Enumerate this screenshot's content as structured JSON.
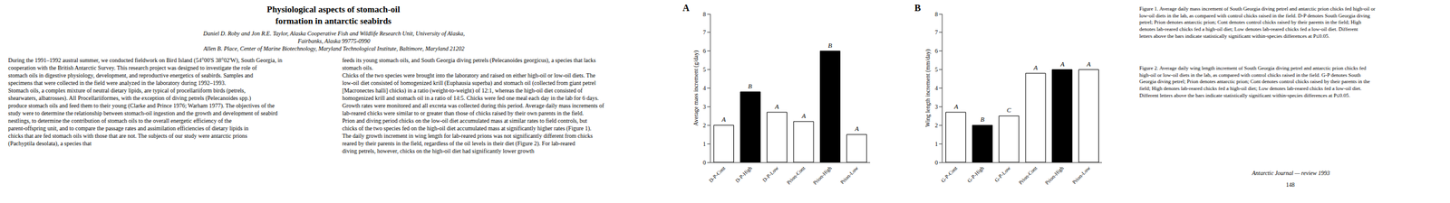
{
  "title": "Physiological aspects of stomach-oil\nformation in antarctic seabirds",
  "subtitle": [
    "Daniel D. Roby and Jon R.E. Taylor, Alaska Cooperative Fish and Wildlife Research Unit, University of Alaska,",
    "Fairbanks, Alaska 99775-0990",
    "Allen B. Place, Center of Marine Biotechnology, Maryland Technological Institute, Baltimore, Maryland 21202"
  ],
  "annotations": [
    "During the 1991–1992 austral summer, we conducted fieldwork on Bird Island (54°00'S 38°02'W), South Georgia, in cooperation with the British Antarctic Survey. This research project was designed to investigate the role of stomach oils in digestive physiology, development, and reproductive energetics of seabirds. Samples and specimens that were collected in the field were analyzed in the laboratory during 1992–1993.\nStomach oils, a complex mixture of neutral dietary lipids, are typical of procellariiform birds (petrels, shearwaters, albatrosses). All Procellariiformes, with the exception of diving petrels (Pelecanoides spp.) produce stomach oils and feed them to their young (Clarke and Prince 1976; Warham 1977). The objectives of the study were to determine the relationship between stomach-oil ingestion and the growth and development of seabird nestlings, to determine the contribution of stomach oils to the overall energetic efficiency of the parent-offspring unit, and to compare the passage rates and assimilation efficiencies of dietary lipids in chicks that are fed stomach oils with those that are not. The subjects of our study were antarctic prions (Pachyptila desolata), a species that",
    "feeds its young stomach oils, and South Georgia diving petrels (Pelecanoides georgicus), a species that lacks stomach oils.\nChicks of the two species were brought into the laboratory and raised on either high-oil or low-oil diets. The low-oil diet consisted of homogenized krill (Euphausia superba) and stomach oil (collected from giant petrel [Macronectes halli] chicks) in a ratio (weight-to-weight) of 12:1, whereas the high-oil diet consisted of homogenized krill and stomach oil in a ratio of 14:5. Chicks were fed one meal each day in the lab for 6 days. Growth rates were monitored and all excreta was collected during this period. Average daily mass increments of lab-reared chicks were similar to or greater than those of chicks raised by their own parents in the field. Prion and diving period chicks on the low-oil diet accumulated mass at similar rates to field controls, but chicks of the two species fed on the high-oil diet accumulated mass at significantly higher rates (Figure 1). The daily growth increment in wing length for lab-reared prions was not significantly different from chicks reared by their parents in the field, regardless of the oil levels in their diet (Figure 2). For lab-reared diving petrels, however, chicks on the high-oil diet had significantly lower growth",
    "Figure 1. Average daily mass increment of South Georgia diving petrel and antarctic prion chicks fed high-oil or low-oil diets in the lab, as compared with control chicks raised in the field. D-P denotes South Georgia diving petrel; Prion denotes antarctic prion; Cont denotes control chicks raised by their parents in the field; High denotes lab-reared chicks fed a high-oil diet; Low denotes lab-reared chicks fed a low-oil diet. Different letters above the bars indicate statistically significant within-species differences at P≤0.05.",
    "Figure 2. Average daily wing length increment of South Georgia diving petrel and antarctic prion chicks fed high-oil or low-oil diets in the lab, as compared with control chicks raised in the field. G-P denotes South Georgia diving petrel; Prion denotes antarctic prion; Cont denotes control chicks raised by their parents in the field; High denotes lab-reared chicks fed a high-oil diet; Low denotes lab-reared chicks fed a low-oil diet. Different letters above the bars indicate statistically significant within-species differences at P≤0.05.",
    "Antarctic Journal — review 1993",
    "148"
  ],
  "chart_data": [
    {
      "type": "bar",
      "title": "A",
      "categories": [
        "D-P-Cont",
        "D-P-High",
        "D-P-Low",
        "Prion-Cont",
        "Prion-High",
        "Prion-Low"
      ],
      "values": [
        2.0,
        3.8,
        2.7,
        2.2,
        6.0,
        1.5
      ],
      "colors": [
        "white",
        "black",
        "hatch",
        "white",
        "black",
        "hatch"
      ],
      "annotations": [
        {
          "category": "D-P-Cont",
          "text": "A"
        },
        {
          "category": "D-P-High",
          "text": "B"
        },
        {
          "category": "D-P-Low",
          "text": "A"
        },
        {
          "category": "Prion-Cont",
          "text": "A"
        },
        {
          "category": "Prion-High",
          "text": "B"
        },
        {
          "category": "Prion-Low",
          "text": "A"
        }
      ],
      "ylabel": "Average mass increment (g/day)",
      "ylim": [
        0,
        8
      ],
      "yticks": [
        0,
        1,
        2,
        3,
        4,
        5,
        6,
        7,
        8
      ],
      "grid": false
    },
    {
      "type": "bar",
      "title": "B",
      "categories": [
        "G-P-Cont",
        "G-P-High",
        "G-P-Low",
        "Prion-Cont",
        "Prion-High",
        "Prion-Low"
      ],
      "values": [
        2.7,
        2.0,
        2.5,
        4.8,
        5.0,
        5.0
      ],
      "colors": [
        "white",
        "black",
        "hatch",
        "white",
        "black",
        "hatch"
      ],
      "annotations": [
        {
          "category": "G-P-Cont",
          "text": "A"
        },
        {
          "category": "G-P-High",
          "text": "B"
        },
        {
          "category": "G-P-Low",
          "text": "C"
        },
        {
          "category": "Prion-Cont",
          "text": "A"
        },
        {
          "category": "Prion-High",
          "text": "A"
        },
        {
          "category": "Prion-Low",
          "text": "A"
        }
      ],
      "ylabel": "Wing length increment (mm/day)",
      "ylim": [
        0,
        8
      ],
      "yticks": [
        0,
        1,
        2,
        3,
        4,
        5,
        6,
        7,
        8
      ],
      "grid": false
    }
  ]
}
